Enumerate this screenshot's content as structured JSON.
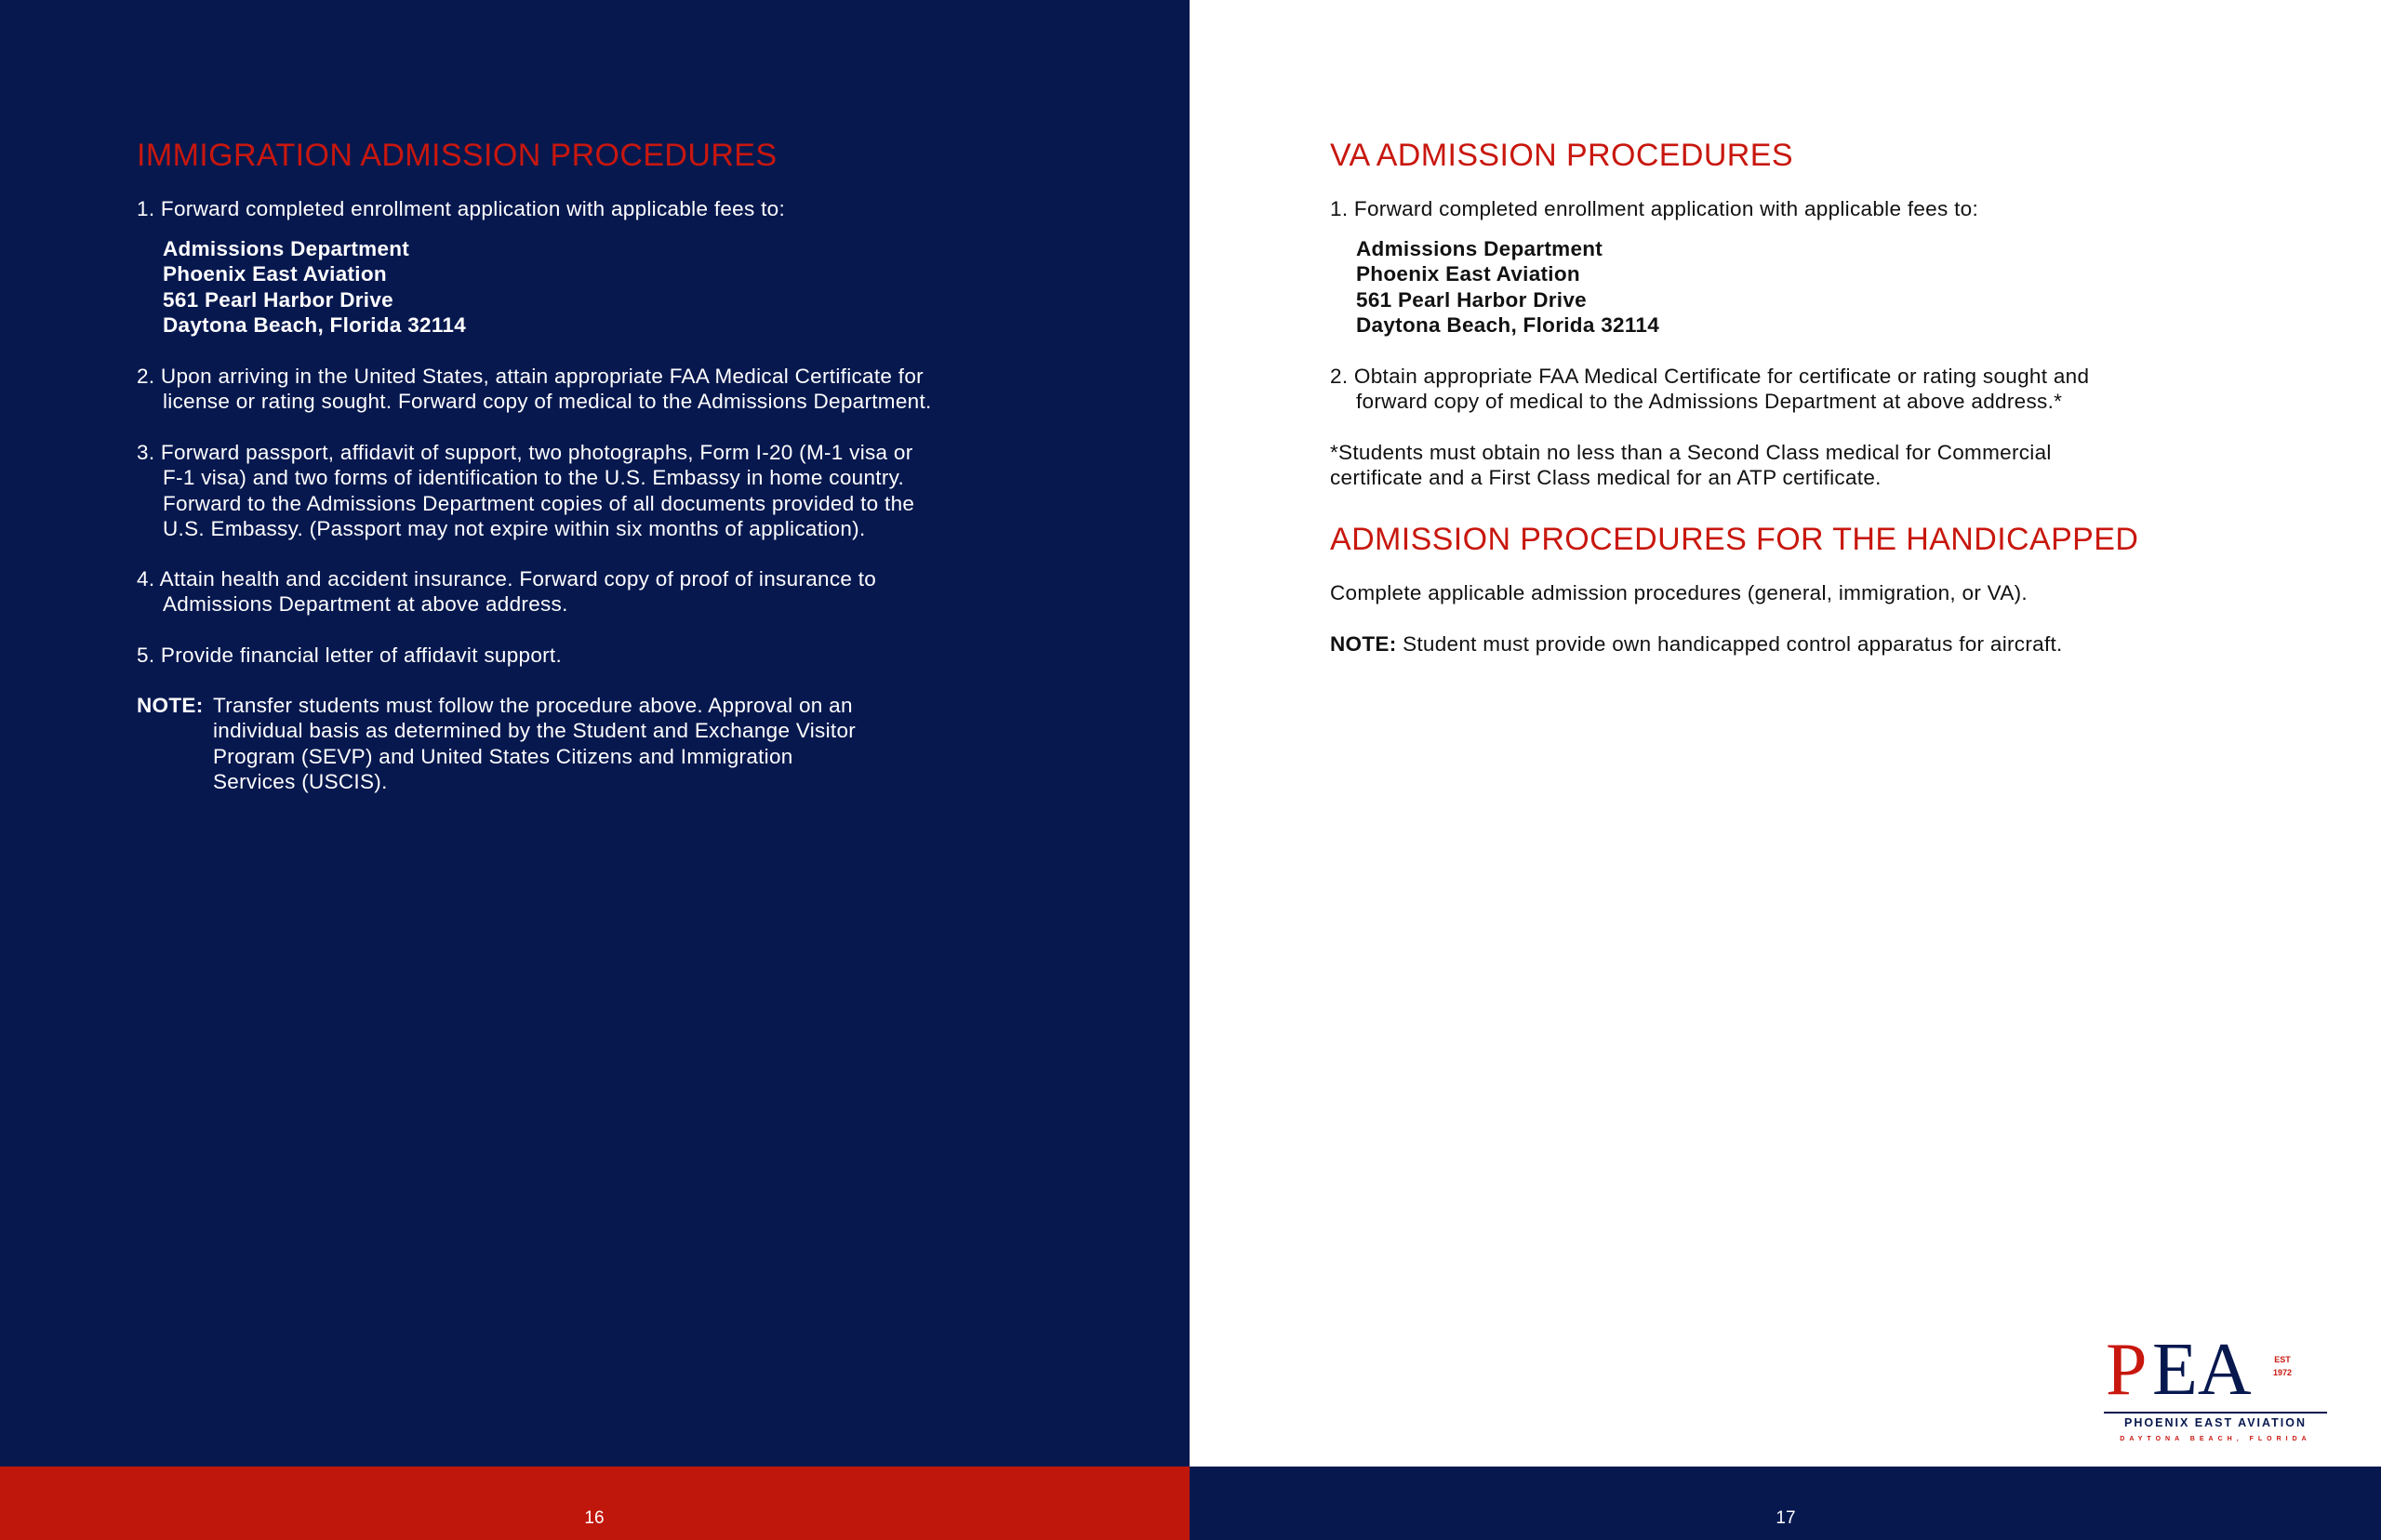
{
  "left_page": {
    "heading": "IMMIGRATION ADMISSION PROCEDURES",
    "item1": "1. Forward completed enrollment application with applicable fees to:",
    "address": [
      "Admissions Department",
      "Phoenix East Aviation",
      "561 Pearl Harbor Drive",
      "Daytona Beach, Florida 32114"
    ],
    "item2": [
      "2. Upon arriving in the United States, attain appropriate FAA Medical Certificate for",
      "license or rating sought. Forward copy of medical to the Admissions Department."
    ],
    "item3": [
      "3. Forward passport, affidavit of support, two photographs, Form I-20 (M-1 visa or",
      "F-1 visa) and two forms of identification to the U.S. Embassy in home country.",
      "Forward to the Admissions Department copies of all documents provided to the",
      "U.S. Embassy. (Passport may not expire within six months of application)."
    ],
    "item4": [
      "4. Attain health and accident insurance. Forward copy of proof of insurance to",
      "Admissions Department at above address."
    ],
    "item5": "5. Provide financial letter of affidavit support.",
    "note_label": "NOTE:",
    "note": [
      "Transfer students must follow the procedure above. Approval on an",
      "individual basis as determined by the Student and Exchange Visitor",
      "Program (SEVP) and United States Citizens and Immigration",
      "Services (USCIS)."
    ],
    "page_number": "16"
  },
  "right_page": {
    "heading": "VA ADMISSION PROCEDURES",
    "item1": "1. Forward completed enrollment application with applicable fees to:",
    "address": [
      "Admissions Department",
      "Phoenix East Aviation",
      "561 Pearl Harbor Drive",
      "Daytona Beach, Florida 32114"
    ],
    "item2": [
      "2. Obtain appropriate FAA Medical Certificate for certificate or rating sought and",
      "forward copy of medical to the Admissions Department at above address.*"
    ],
    "footnote": [
      "*Students must obtain no less than a Second Class medical for Commercial",
      "certificate and a First Class medical for an ATP certificate."
    ],
    "heading2": "ADMISSION PROCEDURES FOR THE HANDICAPPED",
    "para": "Complete applicable admission procedures (general, immigration, or VA).",
    "note_label": "NOTE:",
    "note": "Student must provide own handicapped control apparatus for aircraft.",
    "page_number": "17"
  },
  "logo": {
    "letters": "PEA",
    "name": "PHOENIX EAST AVIATION",
    "location": "DAYTONA BEACH, FLORIDA",
    "est": "EST 1972"
  },
  "colors": {
    "navy": "#07184f",
    "red": "#c8170e"
  }
}
